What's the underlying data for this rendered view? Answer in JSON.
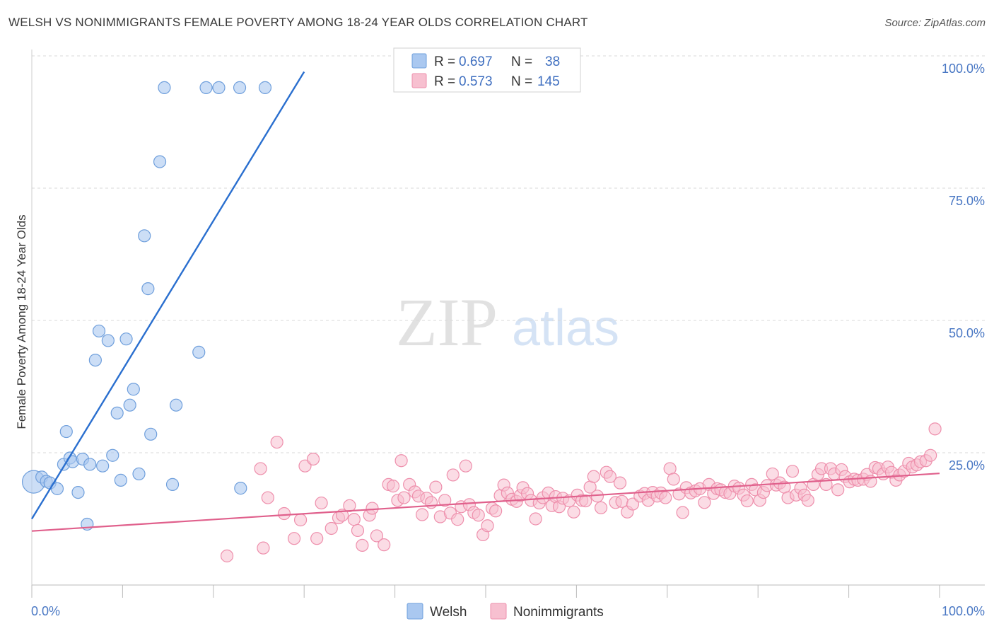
{
  "header": {
    "title": "WELSH VS NONIMMIGRANTS FEMALE POVERTY AMONG 18-24 YEAR OLDS CORRELATION CHART",
    "source": "Source: ZipAtlas.com"
  },
  "watermark": {
    "zip": "ZIP",
    "atlas": "atlas"
  },
  "colors": {
    "welsh_fill": "#aac8f0",
    "welsh_stroke": "#6f9fdc",
    "welsh_line": "#2a6fcf",
    "nonimm_fill": "#f7c0d0",
    "nonimm_stroke": "#ee8fac",
    "nonimm_line": "#e0608c",
    "grid": "#d9d9d9",
    "tick_text": "#4a78c4"
  },
  "chart_data": {
    "type": "scatter",
    "title": "WELSH VS NONIMMIGRANTS FEMALE POVERTY AMONG 18-24 YEAR OLDS CORRELATION CHART",
    "xlabel": "",
    "ylabel": "Female Poverty Among 18-24 Year Olds",
    "xlim": [
      0,
      100
    ],
    "ylim": [
      0,
      100
    ],
    "x_tick_labels": [
      "0.0%",
      "100.0%"
    ],
    "y_ticks": [
      25,
      50,
      75,
      100
    ],
    "y_tick_labels": [
      "25.0%",
      "50.0%",
      "75.0%",
      "100.0%"
    ],
    "grid": true,
    "legend": {
      "position": "top-center",
      "entries": [
        {
          "series": "Welsh",
          "r_label": "R =",
          "r": "0.697",
          "n_label": "N =",
          "n": "38"
        },
        {
          "series": "Nonimmigrants",
          "r_label": "R =",
          "r": "0.573",
          "n_label": "N =",
          "n": "145"
        }
      ]
    },
    "bottom_legend": [
      "Welsh",
      "Nonimmigrants"
    ],
    "series": [
      {
        "name": "Welsh",
        "trend": {
          "x": [
            0,
            30
          ],
          "y": [
            12.5,
            97
          ]
        },
        "points": [
          {
            "x": 0.2,
            "y": 19.5,
            "big": true
          },
          {
            "x": 1.1,
            "y": 20.4
          },
          {
            "x": 1.6,
            "y": 19.6
          },
          {
            "x": 2.0,
            "y": 19.3
          },
          {
            "x": 2.8,
            "y": 18.2
          },
          {
            "x": 3.5,
            "y": 22.8
          },
          {
            "x": 3.8,
            "y": 29.0
          },
          {
            "x": 4.2,
            "y": 24.0
          },
          {
            "x": 4.5,
            "y": 23.3
          },
          {
            "x": 5.1,
            "y": 17.5
          },
          {
            "x": 5.6,
            "y": 23.8
          },
          {
            "x": 6.1,
            "y": 11.5
          },
          {
            "x": 6.4,
            "y": 22.8
          },
          {
            "x": 7.0,
            "y": 42.5
          },
          {
            "x": 7.4,
            "y": 48.0
          },
          {
            "x": 7.8,
            "y": 22.5
          },
          {
            "x": 8.4,
            "y": 46.2
          },
          {
            "x": 8.9,
            "y": 24.5
          },
          {
            "x": 9.4,
            "y": 32.5
          },
          {
            "x": 9.8,
            "y": 19.8
          },
          {
            "x": 10.4,
            "y": 46.5
          },
          {
            "x": 10.8,
            "y": 34.0
          },
          {
            "x": 11.2,
            "y": 37.0
          },
          {
            "x": 11.8,
            "y": 21.0
          },
          {
            "x": 12.4,
            "y": 66.0
          },
          {
            "x": 12.8,
            "y": 56.0
          },
          {
            "x": 13.1,
            "y": 28.5
          },
          {
            "x": 14.1,
            "y": 80.0
          },
          {
            "x": 14.6,
            "y": 94.0
          },
          {
            "x": 15.5,
            "y": 19.0
          },
          {
            "x": 15.9,
            "y": 34.0
          },
          {
            "x": 18.4,
            "y": 44.0
          },
          {
            "x": 19.2,
            "y": 94.0
          },
          {
            "x": 20.6,
            "y": 94.0
          },
          {
            "x": 22.9,
            "y": 94.0
          },
          {
            "x": 25.7,
            "y": 94.0
          },
          {
            "x": 23.0,
            "y": 18.3
          }
        ]
      },
      {
        "name": "Nonimmigrants",
        "trend": {
          "x": [
            0,
            100
          ],
          "y": [
            10.2,
            21.1
          ]
        },
        "points": [
          {
            "x": 21.5,
            "y": 5.5
          },
          {
            "x": 25.2,
            "y": 22.0
          },
          {
            "x": 25.5,
            "y": 7.0
          },
          {
            "x": 26.0,
            "y": 16.5
          },
          {
            "x": 27.0,
            "y": 27.0
          },
          {
            "x": 27.8,
            "y": 13.5
          },
          {
            "x": 28.9,
            "y": 8.8
          },
          {
            "x": 29.6,
            "y": 12.3
          },
          {
            "x": 30.1,
            "y": 22.5
          },
          {
            "x": 31.0,
            "y": 23.8
          },
          {
            "x": 31.4,
            "y": 8.8
          },
          {
            "x": 31.9,
            "y": 15.5
          },
          {
            "x": 33.0,
            "y": 10.7
          },
          {
            "x": 33.8,
            "y": 12.7
          },
          {
            "x": 34.2,
            "y": 13.2
          },
          {
            "x": 35.0,
            "y": 15.0
          },
          {
            "x": 35.5,
            "y": 12.4
          },
          {
            "x": 35.9,
            "y": 10.3
          },
          {
            "x": 36.4,
            "y": 7.5
          },
          {
            "x": 37.2,
            "y": 13.2
          },
          {
            "x": 37.5,
            "y": 14.5
          },
          {
            "x": 38.0,
            "y": 9.3
          },
          {
            "x": 38.8,
            "y": 7.6
          },
          {
            "x": 39.3,
            "y": 19.0
          },
          {
            "x": 39.8,
            "y": 18.7
          },
          {
            "x": 40.3,
            "y": 16.0
          },
          {
            "x": 40.7,
            "y": 23.5
          },
          {
            "x": 41.0,
            "y": 16.5
          },
          {
            "x": 41.6,
            "y": 19.0
          },
          {
            "x": 42.2,
            "y": 17.6
          },
          {
            "x": 42.6,
            "y": 16.8
          },
          {
            "x": 43.0,
            "y": 13.3
          },
          {
            "x": 43.5,
            "y": 16.4
          },
          {
            "x": 44.0,
            "y": 15.6
          },
          {
            "x": 44.5,
            "y": 18.5
          },
          {
            "x": 45.0,
            "y": 12.9
          },
          {
            "x": 45.5,
            "y": 16.0
          },
          {
            "x": 46.1,
            "y": 13.6
          },
          {
            "x": 46.4,
            "y": 20.8
          },
          {
            "x": 46.9,
            "y": 12.4
          },
          {
            "x": 47.3,
            "y": 14.8
          },
          {
            "x": 47.8,
            "y": 22.5
          },
          {
            "x": 48.2,
            "y": 15.2
          },
          {
            "x": 48.7,
            "y": 13.7
          },
          {
            "x": 49.2,
            "y": 13.2
          },
          {
            "x": 49.7,
            "y": 9.5
          },
          {
            "x": 50.2,
            "y": 11.2
          },
          {
            "x": 50.7,
            "y": 14.5
          },
          {
            "x": 51.1,
            "y": 14.0
          },
          {
            "x": 51.6,
            "y": 16.9
          },
          {
            "x": 52.0,
            "y": 18.9
          },
          {
            "x": 52.4,
            "y": 17.4
          },
          {
            "x": 52.9,
            "y": 16.2
          },
          {
            "x": 53.4,
            "y": 15.8
          },
          {
            "x": 53.8,
            "y": 16.9
          },
          {
            "x": 54.1,
            "y": 18.4
          },
          {
            "x": 54.6,
            "y": 17.3
          },
          {
            "x": 55.0,
            "y": 16.0
          },
          {
            "x": 55.5,
            "y": 12.5
          },
          {
            "x": 55.9,
            "y": 15.5
          },
          {
            "x": 56.3,
            "y": 16.5
          },
          {
            "x": 56.9,
            "y": 17.4
          },
          {
            "x": 57.3,
            "y": 15.0
          },
          {
            "x": 57.7,
            "y": 16.7
          },
          {
            "x": 58.1,
            "y": 14.8
          },
          {
            "x": 58.5,
            "y": 16.4
          },
          {
            "x": 59.2,
            "y": 15.9
          },
          {
            "x": 59.7,
            "y": 13.8
          },
          {
            "x": 60.1,
            "y": 17.0
          },
          {
            "x": 60.6,
            "y": 16.0
          },
          {
            "x": 61.0,
            "y": 15.9
          },
          {
            "x": 61.5,
            "y": 18.5
          },
          {
            "x": 61.9,
            "y": 20.5
          },
          {
            "x": 62.3,
            "y": 16.8
          },
          {
            "x": 62.7,
            "y": 14.6
          },
          {
            "x": 63.3,
            "y": 21.3
          },
          {
            "x": 63.7,
            "y": 20.5
          },
          {
            "x": 64.3,
            "y": 15.6
          },
          {
            "x": 64.8,
            "y": 19.3
          },
          {
            "x": 65.0,
            "y": 15.8
          },
          {
            "x": 65.6,
            "y": 13.8
          },
          {
            "x": 66.2,
            "y": 15.3
          },
          {
            "x": 67.0,
            "y": 16.8
          },
          {
            "x": 67.5,
            "y": 17.3
          },
          {
            "x": 67.9,
            "y": 16.0
          },
          {
            "x": 68.4,
            "y": 17.5
          },
          {
            "x": 68.9,
            "y": 16.8
          },
          {
            "x": 69.3,
            "y": 17.4
          },
          {
            "x": 69.8,
            "y": 16.5
          },
          {
            "x": 70.3,
            "y": 22.0
          },
          {
            "x": 70.7,
            "y": 20.0
          },
          {
            "x": 71.3,
            "y": 17.2
          },
          {
            "x": 71.7,
            "y": 13.7
          },
          {
            "x": 72.1,
            "y": 18.4
          },
          {
            "x": 72.6,
            "y": 17.4
          },
          {
            "x": 73.1,
            "y": 17.8
          },
          {
            "x": 73.6,
            "y": 18.2
          },
          {
            "x": 74.1,
            "y": 15.6
          },
          {
            "x": 74.6,
            "y": 19.0
          },
          {
            "x": 75.1,
            "y": 17.3
          },
          {
            "x": 75.5,
            "y": 18.2
          },
          {
            "x": 75.9,
            "y": 18.0
          },
          {
            "x": 76.4,
            "y": 17.5
          },
          {
            "x": 76.9,
            "y": 17.3
          },
          {
            "x": 77.4,
            "y": 18.7
          },
          {
            "x": 77.9,
            "y": 18.3
          },
          {
            "x": 78.4,
            "y": 17.0
          },
          {
            "x": 78.8,
            "y": 15.9
          },
          {
            "x": 79.3,
            "y": 19.0
          },
          {
            "x": 79.7,
            "y": 18.0
          },
          {
            "x": 80.2,
            "y": 16.0
          },
          {
            "x": 80.6,
            "y": 17.5
          },
          {
            "x": 81.0,
            "y": 18.8
          },
          {
            "x": 81.6,
            "y": 21.0
          },
          {
            "x": 82.0,
            "y": 18.9
          },
          {
            "x": 82.4,
            "y": 19.3
          },
          {
            "x": 82.9,
            "y": 18.5
          },
          {
            "x": 83.3,
            "y": 16.5
          },
          {
            "x": 83.8,
            "y": 21.5
          },
          {
            "x": 84.2,
            "y": 17.0
          },
          {
            "x": 84.7,
            "y": 18.3
          },
          {
            "x": 85.1,
            "y": 17.0
          },
          {
            "x": 85.5,
            "y": 16.0
          },
          {
            "x": 86.1,
            "y": 19.0
          },
          {
            "x": 86.6,
            "y": 20.9
          },
          {
            "x": 87.0,
            "y": 22.0
          },
          {
            "x": 87.5,
            "y": 19.0
          },
          {
            "x": 88.0,
            "y": 22.0
          },
          {
            "x": 88.4,
            "y": 21.0
          },
          {
            "x": 88.8,
            "y": 18.0
          },
          {
            "x": 89.2,
            "y": 21.8
          },
          {
            "x": 89.6,
            "y": 20.5
          },
          {
            "x": 90.1,
            "y": 19.5
          },
          {
            "x": 90.6,
            "y": 20.0
          },
          {
            "x": 91.0,
            "y": 19.8
          },
          {
            "x": 91.6,
            "y": 20.0
          },
          {
            "x": 92.0,
            "y": 20.9
          },
          {
            "x": 92.4,
            "y": 19.6
          },
          {
            "x": 92.9,
            "y": 22.2
          },
          {
            "x": 93.3,
            "y": 22.0
          },
          {
            "x": 93.8,
            "y": 21.0
          },
          {
            "x": 94.3,
            "y": 22.3
          },
          {
            "x": 94.7,
            "y": 21.3
          },
          {
            "x": 95.2,
            "y": 19.8
          },
          {
            "x": 95.6,
            "y": 20.8
          },
          {
            "x": 96.1,
            "y": 21.5
          },
          {
            "x": 96.6,
            "y": 23.0
          },
          {
            "x": 97.0,
            "y": 22.3
          },
          {
            "x": 97.5,
            "y": 22.7
          },
          {
            "x": 97.9,
            "y": 23.3
          },
          {
            "x": 98.5,
            "y": 23.5
          },
          {
            "x": 99.0,
            "y": 24.5
          },
          {
            "x": 99.5,
            "y": 29.5
          }
        ]
      }
    ]
  }
}
